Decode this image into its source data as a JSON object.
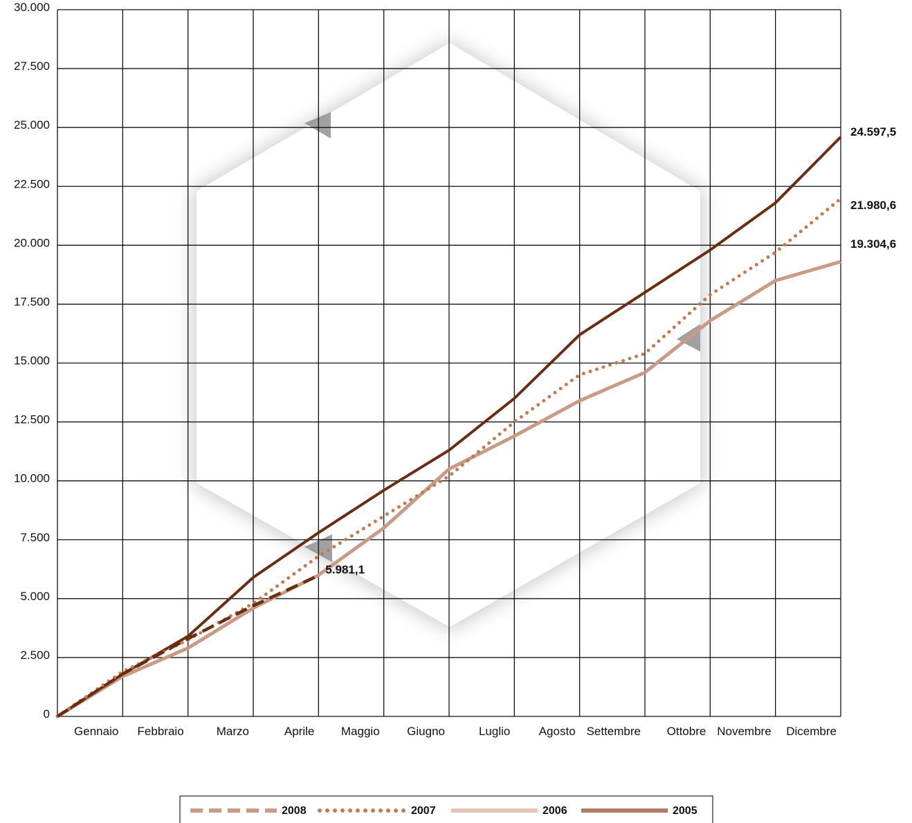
{
  "chart_data": {
    "type": "line",
    "categories": [
      "Gennaio",
      "Febbraio",
      "Marzo",
      "Aprile",
      "Maggio",
      "Giugno",
      "Luglio",
      "Agosto",
      "Settembre",
      "Ottobre",
      "Novembre",
      "Dicembre"
    ],
    "x": [
      0,
      1,
      2,
      3,
      4,
      5,
      6,
      7,
      8,
      9,
      10,
      11,
      12
    ],
    "ylim": [
      0,
      30000
    ],
    "yticks": [
      "0",
      "2.500",
      "5.000",
      "7.500",
      "10.000",
      "12.500",
      "15.000",
      "17.500",
      "20.000",
      "22.500",
      "25.000",
      "27.500",
      "30.000"
    ],
    "ytick_values": [
      0,
      2500,
      5000,
      7500,
      10000,
      12500,
      15000,
      17500,
      20000,
      22500,
      25000,
      27500,
      30000
    ],
    "grid": true,
    "legend": "bottom",
    "series": [
      {
        "name": "2008",
        "style": "dashed",
        "color": "#6b2d12",
        "values": [
          0,
          1800,
          3300,
          4700,
          5981.1,
          null,
          null,
          null,
          null,
          null,
          null,
          null,
          null
        ],
        "end_label": "5.981,1"
      },
      {
        "name": "2007",
        "style": "dotted",
        "color": "#c27a52",
        "values": [
          0,
          1900,
          3250,
          4800,
          6800,
          8500,
          10200,
          12500,
          14500,
          15400,
          17900,
          19700,
          21980.6
        ],
        "end_label": "21.980,6"
      },
      {
        "name": "2006",
        "style": "solid",
        "color": "#c99a86",
        "values": [
          0,
          1700,
          2900,
          4600,
          6000,
          8000,
          10500,
          11900,
          13400,
          14600,
          16800,
          18500,
          19304.6
        ],
        "end_label": "19.304,6"
      },
      {
        "name": "2005",
        "style": "solid",
        "color": "#6b2d12",
        "values": [
          0,
          1800,
          3400,
          5900,
          7800,
          9600,
          11300,
          13500,
          16200,
          18000,
          19800,
          21800,
          24597.5
        ],
        "end_label": "24.597,5"
      }
    ],
    "legend_entries": [
      "2008",
      "2007",
      "2006",
      "2005"
    ],
    "legend_colors": [
      "#c99a86",
      "#c27a52",
      "#e4c7b8",
      "#b07a63"
    ],
    "legend_styles": [
      "dashed",
      "dotted",
      "solid",
      "solid"
    ]
  }
}
